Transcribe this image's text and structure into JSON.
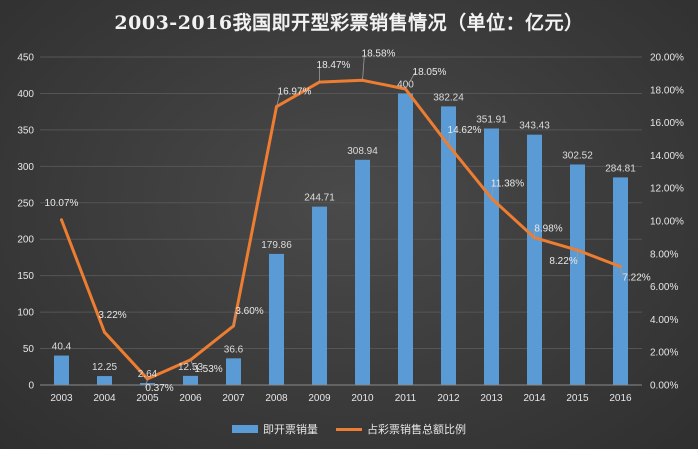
{
  "chart_data": {
    "type": "bar",
    "title": "2003-2016我国即开型彩票销售情况（单位：亿元）",
    "categories": [
      "2003",
      "2004",
      "2005",
      "2006",
      "2007",
      "2008",
      "2009",
      "2010",
      "2011",
      "2012",
      "2013",
      "2014",
      "2015",
      "2016"
    ],
    "series": [
      {
        "name": "即开票销量",
        "type": "bar",
        "axis": "left",
        "values": [
          40.4,
          12.25,
          2.64,
          12.53,
          36.6,
          179.86,
          244.71,
          308.94,
          400,
          382.24,
          351.91,
          343.43,
          302.52,
          284.81
        ],
        "labels": [
          "40.4",
          "12.25",
          "2.64",
          "12.53",
          "36.6",
          "179.86",
          "244.71",
          "308.94",
          "400",
          "382.24",
          "351.91",
          "343.43",
          "302.52",
          "284.81"
        ]
      },
      {
        "name": "占彩票销售总额比例",
        "type": "line",
        "axis": "right",
        "values": [
          10.07,
          3.22,
          0.37,
          1.53,
          3.6,
          16.97,
          18.47,
          18.58,
          18.05,
          14.62,
          11.38,
          8.98,
          8.22,
          7.22
        ],
        "labels": [
          "10.07%",
          "3.22%",
          "0.37%",
          "1.53%",
          "3.60%",
          "16.97%",
          "18.47%",
          "18.58%",
          "18.05%",
          "14.62%",
          "11.38%",
          "8.98%",
          "8.22%",
          "7.22%"
        ]
      }
    ],
    "y_left": {
      "min": 0,
      "max": 450,
      "step": 50,
      "ticks": [
        "0",
        "50",
        "100",
        "150",
        "200",
        "250",
        "300",
        "350",
        "400",
        "450"
      ]
    },
    "y_right": {
      "min": 0,
      "max": 20,
      "step": 2,
      "ticks": [
        "0.00%",
        "2.00%",
        "4.00%",
        "6.00%",
        "8.00%",
        "10.00%",
        "12.00%",
        "14.00%",
        "16.00%",
        "18.00%",
        "20.00%"
      ]
    },
    "grid": true,
    "legend_position": "bottom",
    "colors": {
      "bar": "#5b9bd5",
      "line": "#ed7d31",
      "grid": "#555555",
      "background": "#3b3b3b"
    }
  }
}
